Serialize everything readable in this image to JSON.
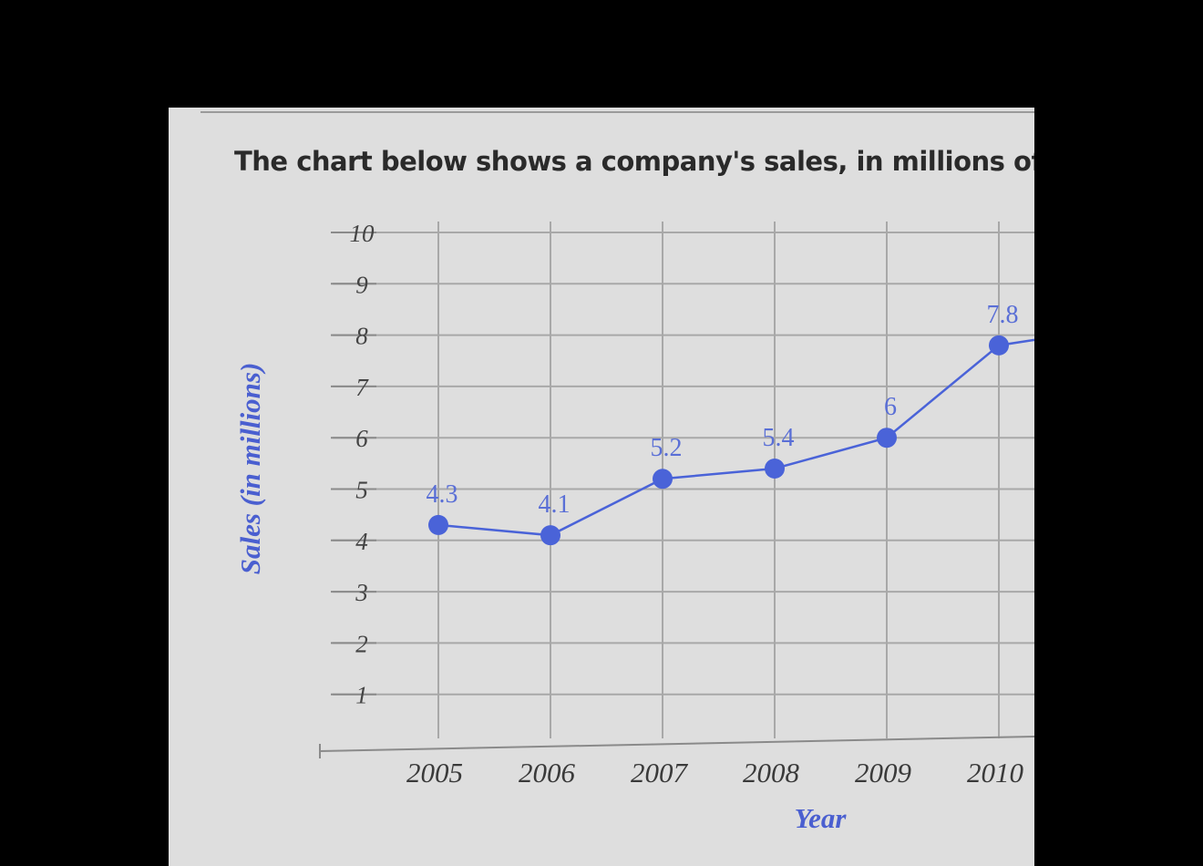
{
  "prompt": "The chart below shows a company's sales, in millions of doll",
  "chart_data": {
    "type": "line",
    "title": "",
    "xlabel": "Year",
    "ylabel": "Sales (in millions)",
    "x": [
      "2005",
      "2006",
      "2007",
      "2008",
      "2009",
      "2010"
    ],
    "series": [
      {
        "values": [
          4.3,
          4.1,
          5.2,
          5.4,
          6,
          7.8
        ]
      }
    ],
    "data_labels": [
      "4.3",
      "4.1",
      "5.2",
      "5.4",
      "6",
      "7.8"
    ],
    "y_ticks": [
      "10",
      "9",
      "8",
      "7",
      "6",
      "5",
      "4",
      "3",
      "2",
      "1"
    ],
    "ylim": [
      0,
      10
    ],
    "grid": true,
    "colors": {
      "series": "#4a63d8",
      "label": "#5a6fd6",
      "axis_title": "#4a5fd0"
    }
  }
}
